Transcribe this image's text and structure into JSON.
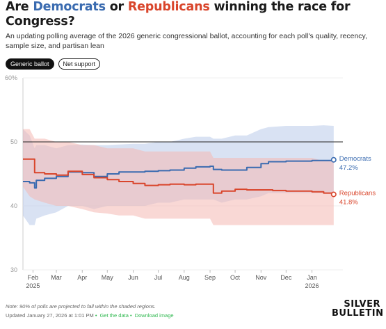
{
  "title": {
    "prefix": "Are ",
    "dem": "Democrats",
    "middle": " or ",
    "rep": "Republicans",
    "suffix": " winning the race for Congress?"
  },
  "subtitle": "An updating polling average of the 2026 generic congressional ballot, accounting for each poll's quality, recency, sample size, and partisan lean",
  "toggles": {
    "generic_ballot": "Generic ballot",
    "net_support": "Net support"
  },
  "footer": {
    "note": "Note: 90% of polls are projected to fall within the shaded regions.",
    "updated": "Updated January 27, 2026 at 1:01 PM",
    "get_data": "Get the data",
    "sep": "•",
    "download": "Download image"
  },
  "logo": {
    "line1": "SILVER",
    "line2": "BULLETIN"
  },
  "colors": {
    "dem": "#3a6bb0",
    "rep": "#d9452b",
    "dem_band": "#b9cbea",
    "rep_band": "#f4b8b2"
  },
  "chart_data": {
    "type": "line",
    "y_ticks": [
      "60%",
      "50",
      "40",
      "30"
    ],
    "ylim": [
      30,
      60
    ],
    "x_ticks": [
      {
        "date": "2025-02-01",
        "label": "Feb",
        "sub": "2025"
      },
      {
        "date": "2025-03-01",
        "label": "Mar"
      },
      {
        "date": "2025-04-01",
        "label": "Apr"
      },
      {
        "date": "2025-05-01",
        "label": "May"
      },
      {
        "date": "2025-06-01",
        "label": "Jun"
      },
      {
        "date": "2025-07-01",
        "label": "Jul"
      },
      {
        "date": "2025-08-01",
        "label": "Aug"
      },
      {
        "date": "2025-09-01",
        "label": "Sep"
      },
      {
        "date": "2025-10-01",
        "label": "Oct"
      },
      {
        "date": "2025-11-01",
        "label": "Nov"
      },
      {
        "date": "2025-12-01",
        "label": "Dec"
      },
      {
        "date": "2026-01-01",
        "label": "Jan",
        "sub": "2026"
      }
    ],
    "xlim": [
      "2025-01-20",
      "2026-02-07"
    ],
    "reference_line": 50,
    "series": [
      {
        "name": "Democrats",
        "label_value": "47.2%",
        "color": "#3a6bb0",
        "points": [
          [
            "2025-01-20",
            43.8,
            38.5,
            52.0
          ],
          [
            "2025-01-28",
            43.6,
            37.0,
            51.0
          ],
          [
            "2025-02-03",
            42.8,
            37.0,
            49.0
          ],
          [
            "2025-02-05",
            44.0,
            38.0,
            49.5
          ],
          [
            "2025-02-15",
            44.3,
            38.5,
            49.5
          ],
          [
            "2025-03-01",
            44.6,
            39.0,
            49.0
          ],
          [
            "2025-03-15",
            45.3,
            40.0,
            49.5
          ],
          [
            "2025-04-01",
            45.2,
            40.0,
            49.6
          ],
          [
            "2025-04-15",
            44.6,
            39.5,
            49.5
          ],
          [
            "2025-05-01",
            45.0,
            40.0,
            49.5
          ],
          [
            "2025-05-15",
            45.3,
            40.0,
            49.6
          ],
          [
            "2025-06-01",
            45.3,
            40.0,
            49.7
          ],
          [
            "2025-06-15",
            45.4,
            40.0,
            49.7
          ],
          [
            "2025-07-01",
            45.5,
            40.5,
            50.0
          ],
          [
            "2025-07-15",
            45.6,
            40.5,
            50.0
          ],
          [
            "2025-08-01",
            45.9,
            41.0,
            50.5
          ],
          [
            "2025-08-15",
            46.1,
            41.0,
            50.8
          ],
          [
            "2025-09-01",
            46.2,
            41.0,
            50.8
          ],
          [
            "2025-09-05",
            45.7,
            41.0,
            50.5
          ],
          [
            "2025-09-15",
            45.6,
            40.5,
            50.5
          ],
          [
            "2025-10-01",
            45.6,
            41.0,
            51.0
          ],
          [
            "2025-10-15",
            46.0,
            41.0,
            51.0
          ],
          [
            "2025-11-01",
            46.6,
            41.5,
            52.0
          ],
          [
            "2025-11-10",
            46.9,
            42.0,
            52.3
          ],
          [
            "2025-12-01",
            47.0,
            42.0,
            52.5
          ],
          [
            "2025-12-15",
            47.0,
            42.0,
            52.5
          ],
          [
            "2026-01-01",
            47.1,
            42.0,
            52.5
          ],
          [
            "2026-01-15",
            47.1,
            42.0,
            52.6
          ],
          [
            "2026-01-27",
            47.2,
            42.0,
            52.5
          ]
        ]
      },
      {
        "name": "Republicans",
        "label_value": "41.8%",
        "color": "#d9452b",
        "points": [
          [
            "2025-01-20",
            47.3,
            43.0,
            52.0
          ],
          [
            "2025-01-28",
            47.3,
            41.5,
            52.0
          ],
          [
            "2025-02-03",
            45.2,
            41.0,
            50.5
          ],
          [
            "2025-02-15",
            45.0,
            40.5,
            50.5
          ],
          [
            "2025-03-01",
            44.8,
            40.0,
            50.0
          ],
          [
            "2025-03-15",
            45.4,
            40.0,
            50.0
          ],
          [
            "2025-04-01",
            44.9,
            39.5,
            49.5
          ],
          [
            "2025-04-15",
            44.4,
            39.0,
            49.5
          ],
          [
            "2025-05-01",
            44.1,
            38.8,
            49.0
          ],
          [
            "2025-05-15",
            43.8,
            38.5,
            49.0
          ],
          [
            "2025-06-01",
            43.5,
            38.5,
            49.0
          ],
          [
            "2025-06-15",
            43.2,
            38.0,
            48.5
          ],
          [
            "2025-07-01",
            43.3,
            38.0,
            48.5
          ],
          [
            "2025-07-15",
            43.4,
            38.0,
            48.5
          ],
          [
            "2025-08-01",
            43.3,
            38.0,
            48.5
          ],
          [
            "2025-08-15",
            43.4,
            38.0,
            48.5
          ],
          [
            "2025-09-01",
            43.4,
            38.0,
            48.5
          ],
          [
            "2025-09-05",
            42.0,
            37.0,
            47.5
          ],
          [
            "2025-09-15",
            42.3,
            37.0,
            47.5
          ],
          [
            "2025-10-01",
            42.6,
            37.0,
            47.5
          ],
          [
            "2025-10-15",
            42.5,
            37.0,
            47.5
          ],
          [
            "2025-11-01",
            42.5,
            37.0,
            47.5
          ],
          [
            "2025-11-15",
            42.4,
            37.0,
            47.5
          ],
          [
            "2025-12-01",
            42.3,
            37.0,
            47.5
          ],
          [
            "2025-12-15",
            42.3,
            37.0,
            47.5
          ],
          [
            "2026-01-01",
            42.2,
            37.0,
            47.5
          ],
          [
            "2026-01-15",
            42.0,
            37.0,
            47.0
          ],
          [
            "2026-01-27",
            41.8,
            37.0,
            47.0
          ]
        ]
      }
    ]
  }
}
